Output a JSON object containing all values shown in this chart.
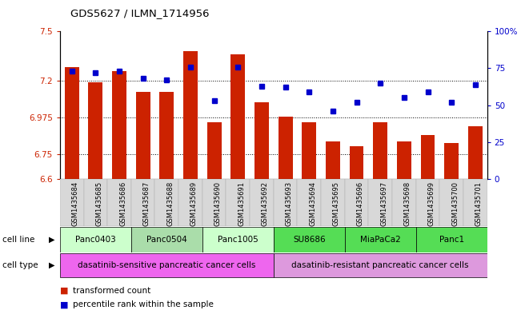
{
  "title": "GDS5627 / ILMN_1714956",
  "samples": [
    "GSM1435684",
    "GSM1435685",
    "GSM1435686",
    "GSM1435687",
    "GSM1435688",
    "GSM1435689",
    "GSM1435690",
    "GSM1435691",
    "GSM1435692",
    "GSM1435693",
    "GSM1435694",
    "GSM1435695",
    "GSM1435696",
    "GSM1435697",
    "GSM1435698",
    "GSM1435699",
    "GSM1435700",
    "GSM1435701"
  ],
  "bar_values": [
    7.28,
    7.19,
    7.26,
    7.13,
    7.13,
    7.38,
    6.945,
    7.36,
    7.07,
    6.98,
    6.945,
    6.83,
    6.8,
    6.945,
    6.83,
    6.87,
    6.82,
    6.92
  ],
  "percentile_values": [
    73,
    72,
    73,
    68,
    67,
    76,
    53,
    76,
    63,
    62,
    59,
    46,
    52,
    65,
    55,
    59,
    52,
    64
  ],
  "ylim_left": [
    6.6,
    7.5
  ],
  "ylim_right": [
    0,
    100
  ],
  "yticks_left": [
    6.6,
    6.75,
    6.975,
    7.2,
    7.5
  ],
  "ytick_labels_left": [
    "6.6",
    "6.75",
    "6.975",
    "7.2",
    "7.5"
  ],
  "yticks_right": [
    0,
    25,
    50,
    75,
    100
  ],
  "ytick_labels_right": [
    "0",
    "25",
    "50",
    "75",
    "100%"
  ],
  "bar_color": "#cc2200",
  "dot_color": "#0000cc",
  "background_color": "#ffffff",
  "cell_lines": [
    {
      "label": "Panc0403",
      "start": 0,
      "end": 3,
      "color": "#ccffcc"
    },
    {
      "label": "Panc0504",
      "start": 3,
      "end": 6,
      "color": "#aaddaa"
    },
    {
      "label": "Panc1005",
      "start": 6,
      "end": 9,
      "color": "#ccffcc"
    },
    {
      "label": "SU8686",
      "start": 9,
      "end": 12,
      "color": "#55dd55"
    },
    {
      "label": "MiaPaCa2",
      "start": 12,
      "end": 15,
      "color": "#55dd55"
    },
    {
      "label": "Panc1",
      "start": 15,
      "end": 18,
      "color": "#55dd55"
    }
  ],
  "cell_types": [
    {
      "label": "dasatinib-sensitive pancreatic cancer cells",
      "start": 0,
      "end": 9,
      "color": "#ee66ee"
    },
    {
      "label": "dasatinib-resistant pancreatic cancer cells",
      "start": 9,
      "end": 18,
      "color": "#dd99dd"
    }
  ],
  "legend_items": [
    {
      "color": "#cc2200",
      "label": "transformed count"
    },
    {
      "color": "#0000cc",
      "label": "percentile rank within the sample"
    }
  ]
}
